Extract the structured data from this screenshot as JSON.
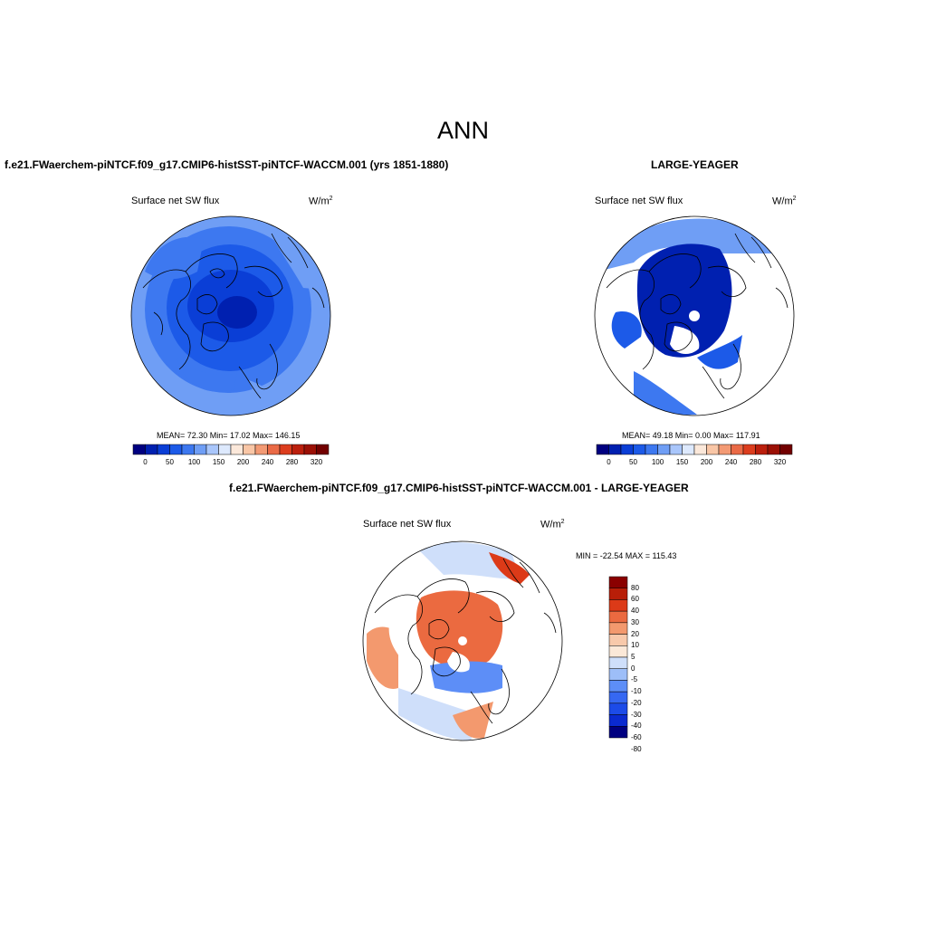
{
  "main_title": "ANN",
  "colors": {
    "abs_scale": [
      "#000080",
      "#0020b0",
      "#0a3ed6",
      "#1c5ae8",
      "#3d78f0",
      "#6f9ef5",
      "#a9c6fb",
      "#dde9fd",
      "#fbe8da",
      "#f9c6a6",
      "#f39a74",
      "#ea6a46",
      "#dc3d1e",
      "#bb1f0d",
      "#9b1005",
      "#720000"
    ],
    "diff_scale": [
      "#000080",
      "#0a2ad0",
      "#1c4be8",
      "#3668f2",
      "#5d8ef7",
      "#9dbef8",
      "#cfdffa",
      "#fbe8d8",
      "#f8c9ab",
      "#f3996e",
      "#eb6a40",
      "#dc3a18",
      "#b81e08",
      "#8a0000"
    ]
  },
  "panels": [
    {
      "title": "f.e21.FWaerchem-piNTCF.f09_g17.CMIP6-histSST-piNTCF-WACCM.001 (yrs 1851-1880)",
      "variable": "Surface net SW flux",
      "units_base": "W/m",
      "units_exp": "2",
      "stats": "MEAN=  72.30  Min=  17.02  Max= 146.15",
      "colorbar_labels": [
        "0",
        "50",
        "100",
        "150",
        "200",
        "240",
        "280",
        "320"
      ]
    },
    {
      "title": "LARGE-YEAGER",
      "variable": "Surface net SW flux",
      "units_base": "W/m",
      "units_exp": "2",
      "stats": "MEAN=  49.18  Min=   0.00  Max= 117.91",
      "colorbar_labels": [
        "0",
        "50",
        "100",
        "150",
        "200",
        "240",
        "280",
        "320"
      ]
    },
    {
      "title": "f.e21.FWaerchem-piNTCF.f09_g17.CMIP6-histSST-piNTCF-WACCM.001 - LARGE-YEAGER",
      "variable": "Surface net SW flux",
      "units_base": "W/m",
      "units_exp": "2",
      "stats": "MIN = -22.54 MAX = 115.43",
      "colorbar_labels": [
        "80",
        "60",
        "40",
        "30",
        "20",
        "10",
        "5",
        "0",
        "-5",
        "-10",
        "-20",
        "-30",
        "-40",
        "-60",
        "-80"
      ]
    }
  ]
}
